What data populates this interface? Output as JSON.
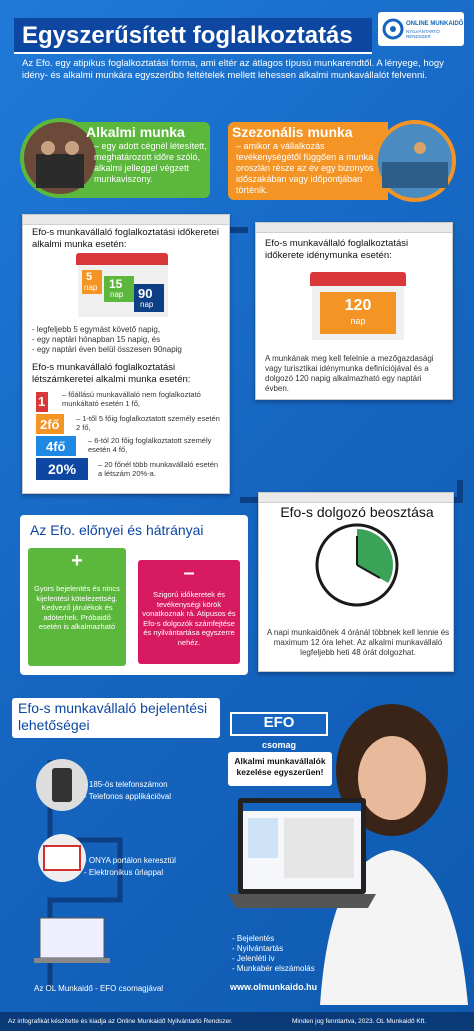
{
  "header": {
    "title": "Egyszerűsített foglalkoztatás",
    "logo_line1": "ONLINE MUNKAIDŐ",
    "logo_line2": "NYILVÁNTARTÓ RENDSZER",
    "intro": "Az Efo. egy atipikus foglalkoztatási forma, ami eltér az átlagos típusú munkarendtől. A lényege, hogy idény- és alkalmi munkára egyszerűbb feltételek mellett lehessen alkalmi munkavállalót felvenni."
  },
  "types": [
    {
      "title": "Alkalmi munka",
      "text": "– egy adott cégnél létesített, meghatározott időre szóló, alkalmi jelleggel végzett munkaviszony."
    },
    {
      "title": "Szezonális munka",
      "text": "– amikor a vállalkozás tevékenységétől függően a munka oroszlán része az év egy bizonyos időszakában vagy időpontjában történik."
    }
  ],
  "casual": {
    "title": "Efo-s munkavállaló foglalkoztatási időkeretei alkalmi munka esetén:",
    "calendar": [
      {
        "num": "5",
        "unit": "nap"
      },
      {
        "num": "15",
        "unit": "nap"
      },
      {
        "num": "90",
        "unit": "nap"
      }
    ],
    "bullets": [
      "- legfeljebb 5 egymást követő napig,",
      "- egy naptári hónapban 15 napig, és",
      "- egy naptári éven belül összesen 90napig"
    ],
    "headcount_title": "Efo-s munkavállaló foglalkoztatási létszámkeretei alkalmi munka esetén:",
    "pyramid": [
      {
        "label": "1",
        "text": "– főállású munkavállaló nem foglalkoztató munkáltató esetén 1 fő,"
      },
      {
        "label": "2fő",
        "text": "– 1-től 5 főig foglalkoztatott személy esetén 2 fő,"
      },
      {
        "label": "4fő",
        "text": "– 6-tól 20 főig foglalkoztatott személy esetén 4 fő,"
      },
      {
        "label": "20%",
        "text": "– 20 főnél több munkavállaló esetén a létszám 20%-a."
      }
    ]
  },
  "seasonal": {
    "title": "Efo-s munkavállaló foglalkoztatási időkerete idénymunka esetén:",
    "num": "120",
    "unit": "nap",
    "text": "A munkának meg kell felelnie a mezőgazdasági vagy turisztikai idénymunka definíciójával és a dolgozó 120 napig alkalmazható egy naptári évben."
  },
  "proscons": {
    "title": "Az Efo. előnyei és hátrányai",
    "plus": "+",
    "pros": "Gyors bejelentés és nincs kijelentési kötelezettség. Kedvező járulékok és adóterhek. Próbaidő esetén is alkalmazható",
    "minus": "–",
    "cons": "Szigorú időkeretek és tevékenységi körök vonatkoznak rá. Atipusos és Efo-s dolgozók számfejtése és nyilvántartása egyszerre nehéz."
  },
  "schedule": {
    "title": "Efo-s dolgozó beosztása",
    "text": "A napi munkaidőnek 4 óránál többnek kell lennie és maximum 12 óra lehet. Az alkalmi munkavállaló legfeljebb heti 48 órát dolgozhat."
  },
  "reporting": {
    "title": "Efo-s munkavállaló bejelentési lehetőségei",
    "groups": [
      [
        "- 185-ös telefonszámon",
        "- Telefonos applikációval"
      ],
      [
        "- ONYA portálon keresztül",
        "- Elektronikus űrlappal"
      ]
    ],
    "package_label": "Az OL Munkaidő - EFO csomagjával"
  },
  "promo": {
    "badge": "EFO",
    "badge_sub": "csomag",
    "tagline": "Alkalmi munkavállalók kezelése egyszerűen!",
    "features": [
      "- Bejelentés",
      "- Nyilvántartás",
      "- Jelenléti ív",
      "- Munkabér elszámolás"
    ],
    "url": "www.olmunkaido.hu"
  },
  "footer": {
    "left": "Az infografikát készítette és kiadja az Online Munkaidő Nyilvántartó Rendszer.",
    "right": "Minden jog fenntartva, 2023. OL Munkaidő Kft."
  }
}
